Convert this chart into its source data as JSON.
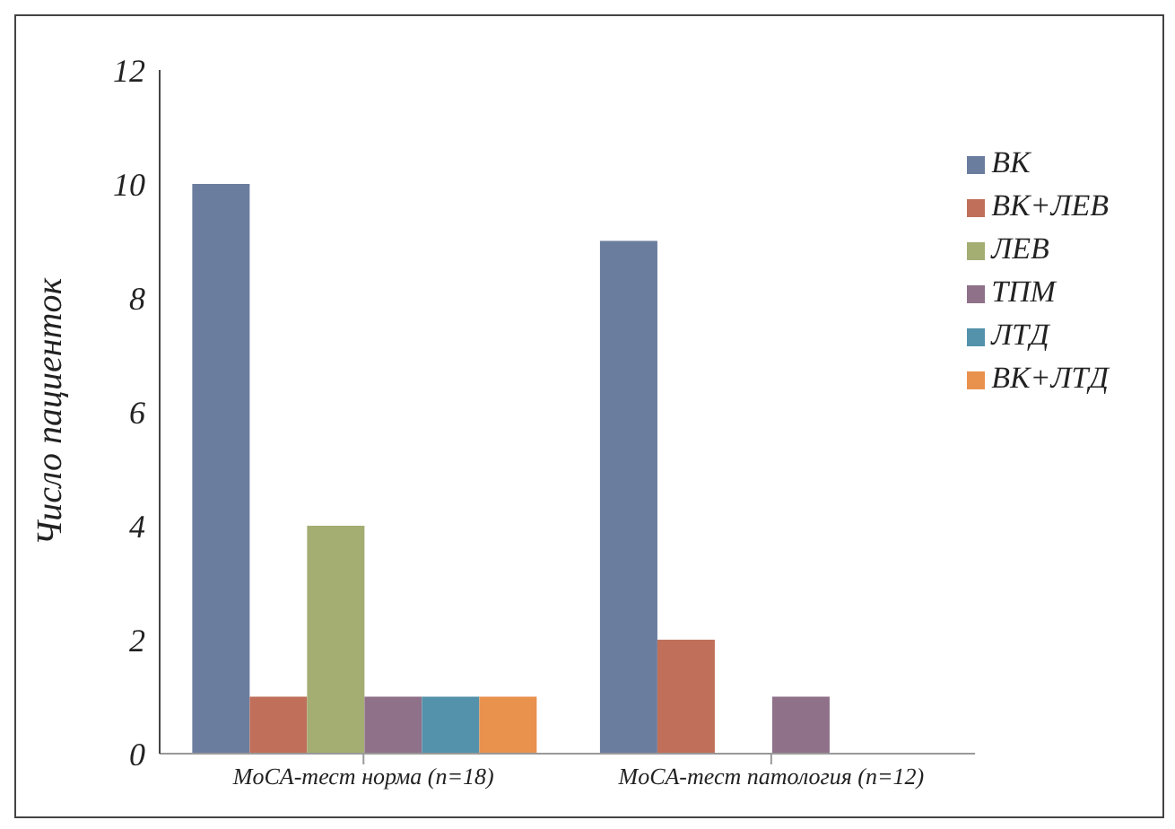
{
  "chart_data": {
    "type": "bar",
    "ylabel": "Число пациенток",
    "categories": [
      "MoCA-тест норма (n=18)",
      "MoCA-тест патология (n=12)"
    ],
    "series": [
      {
        "name": "ВК",
        "color": "#6b7d9e",
        "values": [
          10,
          9
        ]
      },
      {
        "name": "ВК+ЛЕВ",
        "color": "#c0705a",
        "values": [
          1,
          2
        ]
      },
      {
        "name": "ЛЕВ",
        "color": "#a4ad72",
        "values": [
          4,
          0
        ]
      },
      {
        "name": "ТПМ",
        "color": "#8f7189",
        "values": [
          1,
          1
        ]
      },
      {
        "name": "ЛТД",
        "color": "#5491aa",
        "values": [
          1,
          0
        ]
      },
      {
        "name": "ВК+ЛТД",
        "color": "#e9924e",
        "values": [
          1,
          0
        ]
      }
    ],
    "ylim": [
      0,
      12
    ],
    "yticks": [
      0,
      2,
      4,
      6,
      8,
      10,
      12
    ],
    "grid": false,
    "legend": "top right"
  }
}
